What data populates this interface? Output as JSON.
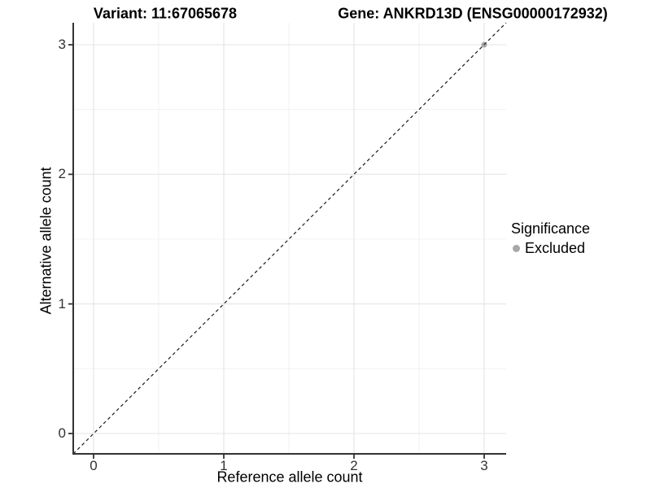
{
  "chart_data": {
    "type": "scatter",
    "title_left": "Variant: 11:67065678",
    "title_right": "Gene: ANKRD13D (ENSG00000172932)",
    "xlabel": "Reference allele count",
    "ylabel": "Alternative allele count",
    "x_ticks": [
      "0",
      "1",
      "2",
      "3"
    ],
    "y_ticks": [
      "0",
      "1",
      "2",
      "3"
    ],
    "xlim": [
      -0.16,
      3.17
    ],
    "ylim": [
      -0.16,
      3.17
    ],
    "grid": "major and minor light-grey gridlines on white panel",
    "reference_line": {
      "style": "dashed",
      "equation": "y = x",
      "color": "#1a1a1a"
    },
    "series": [
      {
        "name": "Excluded",
        "color": "#a8a8a8",
        "marker": "circle",
        "points": [
          {
            "x": 3,
            "y": 3
          }
        ]
      }
    ],
    "legend": {
      "title": "Significance",
      "position": "right",
      "items": [
        {
          "label": "Excluded",
          "color": "#a8a8a8"
        }
      ]
    }
  },
  "colors": {
    "background": "#ffffff",
    "grid_major": "#e4e4e4",
    "grid_minor": "#efefef",
    "axis_line": "#333333",
    "tick_label": "#333333",
    "title_text": "#000000"
  }
}
